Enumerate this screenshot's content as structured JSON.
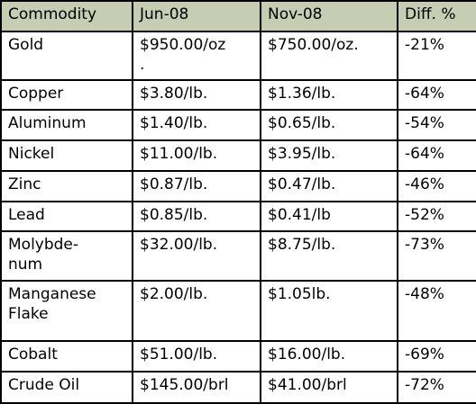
{
  "table": {
    "header": [
      "Commodity",
      "Jun-08",
      "Nov-08",
      "Diff. %"
    ],
    "rows": [
      [
        "Gold",
        "$950.00/oz\n.",
        "$750.00/oz.",
        "-21%"
      ],
      [
        "Copper",
        "$3.80/lb.",
        "$1.36/lb.",
        "-64%"
      ],
      [
        "Aluminum",
        "$1.40/lb.",
        "$0.65/lb.",
        "-54%"
      ],
      [
        "Nickel",
        "$11.00/lb.",
        "$3.95/lb.",
        "-64%"
      ],
      [
        "Zinc",
        "$0.87/lb.",
        "$0.47/lb.",
        "-46%"
      ],
      [
        "Lead",
        "$0.85/lb.",
        "$0.41/lb",
        "-52%"
      ],
      [
        "Molybde-\nnum",
        "$32.00/lb.",
        "$8.75/lb.",
        "-73%"
      ],
      [
        "Manganese\nFlake",
        "$2.00/lb.",
        "$1.05lb.",
        "-48%"
      ],
      [
        "Cobalt",
        "$51.00/lb.",
        "$16.00/lb.",
        "-69%"
      ],
      [
        "Crude Oil",
        "$145.00/brl",
        "$41.00/brl",
        "-72%"
      ]
    ]
  }
}
